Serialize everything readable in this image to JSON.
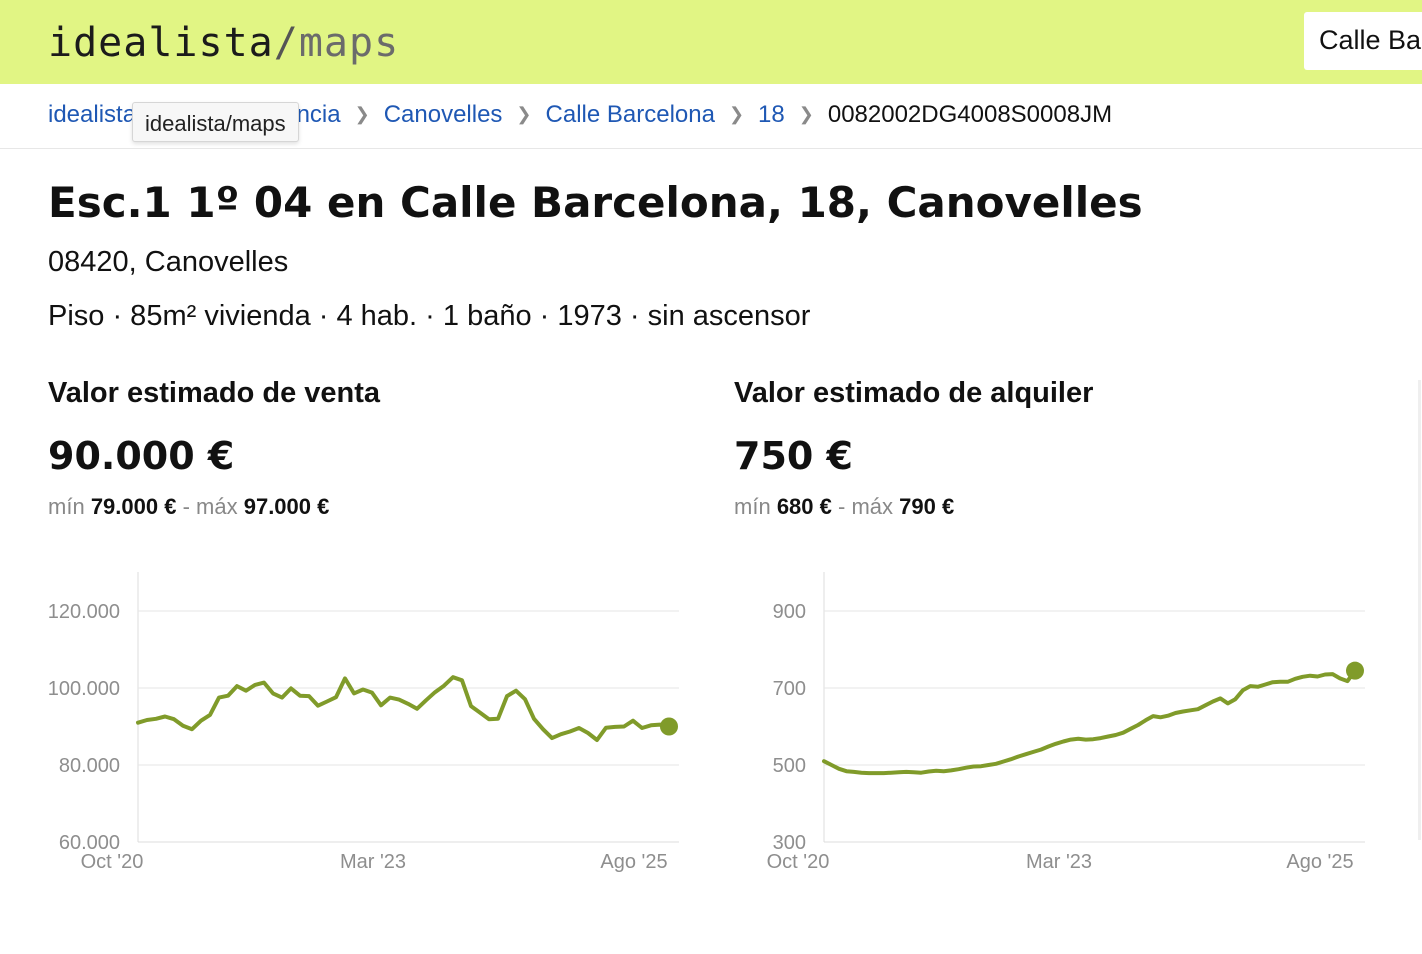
{
  "header": {
    "logo": {
      "brand": "idealista",
      "slash": "/",
      "product": "maps"
    },
    "search_value": "Calle Ba"
  },
  "breadcrumb": {
    "items": [
      "idealista",
      "elona provincia",
      "Canovelles",
      "Calle Barcelona",
      "18",
      "0082002DG4008S0008JM"
    ],
    "tooltip": "idealista/maps"
  },
  "property": {
    "title": "Esc.1 1º 04 en Calle Barcelona, 18, Canovelles",
    "address": "08420, Canovelles",
    "features": "Piso · 85m² vivienda · 4 hab. · 1 baño · 1973 · sin ascensor"
  },
  "sale": {
    "heading": "Valor estimado de venta",
    "value": "90.000 €",
    "min_label": "mín",
    "min": "79.000 €",
    "dash": "-",
    "max_label": "máx",
    "max": "97.000 €"
  },
  "rent": {
    "heading": "Valor estimado de alquiler",
    "value": "750 €",
    "min_label": "mín",
    "min": "680 €",
    "dash": "-",
    "max_label": "máx",
    "max": "790 €"
  },
  "colors": {
    "header_bg": "#e1f584",
    "line": "#809b2a",
    "link": "#1f58b4"
  },
  "chart_data": [
    {
      "type": "line",
      "title": "",
      "xlabel": "",
      "ylabel": "",
      "ylim": [
        60000,
        120000
      ],
      "y_ticks": [
        120000,
        100000,
        80000,
        60000
      ],
      "y_tick_labels": [
        "120.000",
        "100.000",
        "80.000",
        "60.000"
      ],
      "x_tick_labels": [
        "Oct '20",
        "Mar '23",
        "Ago '25"
      ],
      "grid": true,
      "series": [
        {
          "values": [
            91000,
            91700,
            92000,
            92600,
            91900,
            90200,
            89300,
            91500,
            93000,
            97500,
            98000,
            100500,
            99300,
            100800,
            101400,
            98600,
            97500,
            99900,
            98000,
            97900,
            95400,
            96500,
            97600,
            102500,
            98600,
            99600,
            98800,
            95500,
            97500,
            97000,
            95900,
            94600,
            96800,
            98900,
            100600,
            102800,
            102000,
            95300,
            93600,
            91900,
            92000,
            97900,
            99300,
            97100,
            92000,
            89300,
            87000,
            88000,
            88700,
            89600,
            88300,
            86500,
            89700,
            89900,
            90000,
            91500,
            89600,
            90300,
            90500,
            90000
          ]
        }
      ]
    },
    {
      "type": "line",
      "title": "",
      "xlabel": "",
      "ylabel": "",
      "ylim": [
        300,
        900
      ],
      "y_ticks": [
        900,
        700,
        500,
        300
      ],
      "y_tick_labels": [
        "900",
        "700",
        "500",
        "300"
      ],
      "x_tick_labels": [
        "Oct '20",
        "Mar '23",
        "Ago '25"
      ],
      "grid": true,
      "series": [
        {
          "values": [
            510,
            500,
            490,
            484,
            482,
            480,
            479,
            479,
            479,
            480,
            481,
            482,
            481,
            480,
            483,
            485,
            484,
            486,
            489,
            493,
            496,
            497,
            500,
            503,
            509,
            515,
            522,
            528,
            534,
            540,
            548,
            555,
            561,
            566,
            568,
            566,
            567,
            570,
            574,
            578,
            584,
            594,
            604,
            616,
            627,
            624,
            628,
            635,
            639,
            642,
            645,
            655,
            665,
            673,
            660,
            671,
            694,
            705,
            703,
            709,
            715,
            716,
            716,
            724,
            729,
            732,
            730,
            735,
            736,
            725,
            718,
            745
          ]
        }
      ]
    }
  ]
}
